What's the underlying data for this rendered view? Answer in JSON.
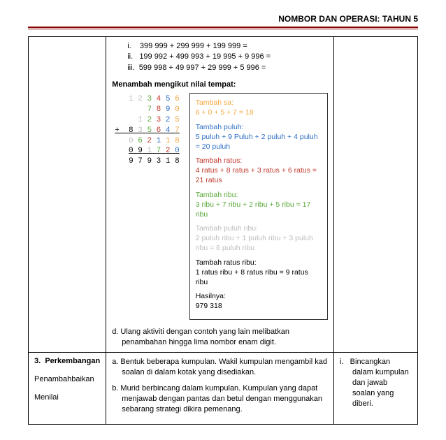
{
  "header": {
    "title": "NOMBOR DAN OPERASI: TAHUN 5"
  },
  "row1": {
    "roman": {
      "i": "399 999 + 299 999 + 199 999 =",
      "ii": "199 992 + 499 993 + 19 995 + 9 996 =",
      "iii": "599 998 + 49 997 + 29 999 + 5 996 ="
    },
    "subhead": "Menambah mengikut nilai tempat:",
    "stack": {
      "l1": {
        "d1": "1",
        "d2": "2",
        "d3": "3",
        "d4": "4",
        "d5": "5",
        "d6": "6"
      },
      "l2": {
        "d3": "7",
        "d4": "8",
        "d5": "9",
        "d6": "0"
      },
      "l3": {
        "d2": "1",
        "d3": "2",
        "d4": "3",
        "d5": "2",
        "d6": "5"
      },
      "l4": {
        "plus": "+ ",
        "d1": "8",
        "d2": "3",
        "d3": "5",
        "d4": "6",
        "d5": "4",
        "d6": "7"
      },
      "l5": {
        "d2": "0",
        "d3": "6",
        "d4": "2",
        "d5": "1",
        "d6": "1",
        "d7": "8"
      },
      "l6": {
        "d1": "0",
        "d2": "9",
        "d3": "1",
        "d4": "7",
        "d5": "2",
        "d6": "0"
      },
      "l7": "9 7 9 3 1 8"
    },
    "box": {
      "sa": {
        "title": "Tambah sa:",
        "body": "6 + 0 + 5 + 7 = 18"
      },
      "pul": {
        "title": "Tambah puluh:",
        "body": "5 puluh + 9 Puluh + 2 puluh + 4 puluh = 20 puluh"
      },
      "rat": {
        "title": "Tambah ratus:",
        "body": "4 ratus + 8 ratus + 3 ratus + 6 ratus = 21 ratus"
      },
      "rib": {
        "title": "Tambah ribu:",
        "body": "3 ribu + 7 ribu + 2 ribu + 5 ribu = 17 ribu"
      },
      "pr": {
        "title": "Tambah puluh ribu:",
        "body": "2 puluh ribu + 1 puluh ribu + 3 puluh ribu = 6 puluh ribu"
      },
      "rr": {
        "title": "Tambah ratus ribu:",
        "body": "1 ratus ribu + 8 ratus ribu = 9 ratus ribu"
      },
      "res": {
        "title": "Hasilnya:",
        "body": "979 318"
      }
    },
    "activity_d": "d. Ulang aktiviti dengan contoh yang lain melibatkan penambahan hingga lima nombor enam digit."
  },
  "row2": {
    "col1": {
      "num": "3.",
      "title": "Perkembangan",
      "sub1": "Penambahbaikan",
      "sub2": "Menilai"
    },
    "col2": {
      "a": "a. Bentuk beberapa kumpulan. Wakil kumpulan mengambil kad soalan di dalam kotak yang disediakan.",
      "b": "b. Murid berbincang dalam kumpulan. Kumpulan yang dapat menjawab dengan pantas dan betul dengan menggunakan sebarang strategi dikira pemenang."
    },
    "col3": {
      "i_label": "i.",
      "i_text": "Bincangkan dalam kumpulan dan jawab soalan yang diberi."
    }
  }
}
